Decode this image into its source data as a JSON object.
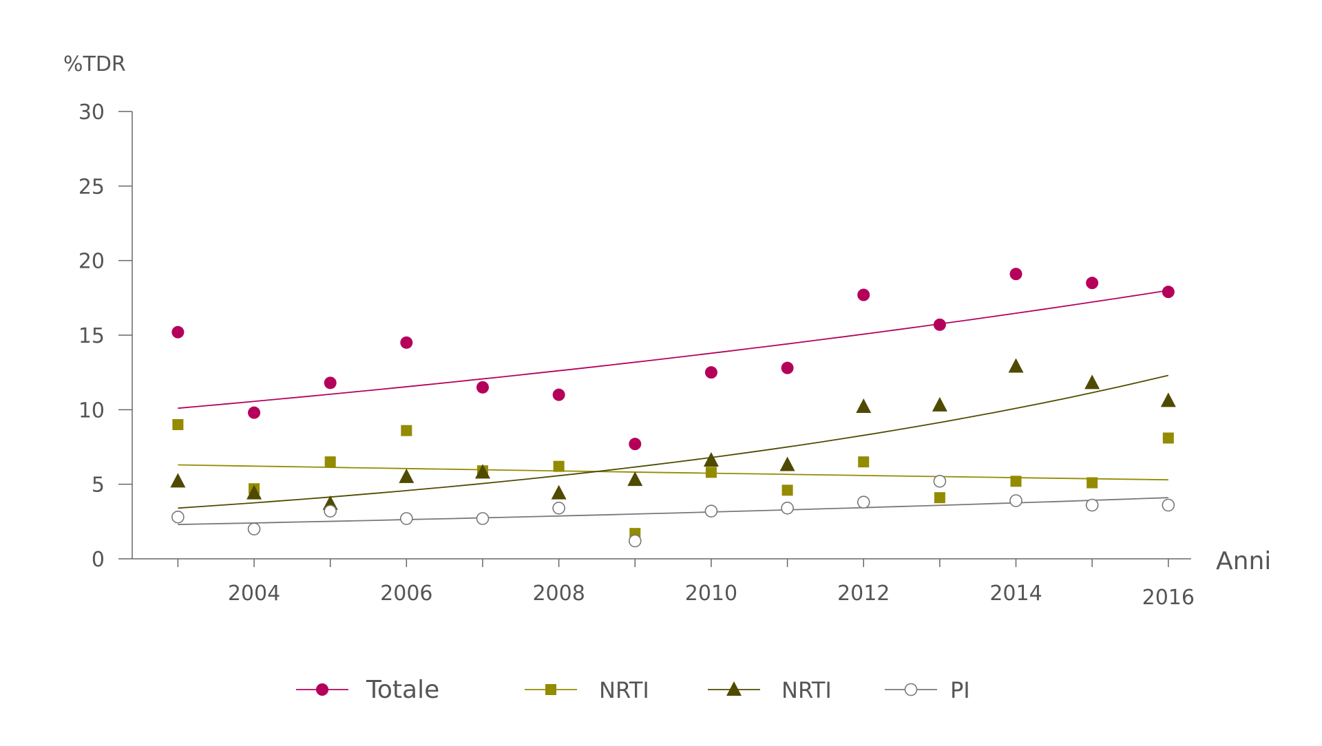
{
  "chart_data": {
    "type": "scatter",
    "ylabel": "%TDR",
    "xlabel": "Anni",
    "xlim": [
      2002.4,
      2016.3
    ],
    "ylim": [
      0,
      30
    ],
    "xticks": [
      2004,
      2006,
      2008,
      2010,
      2012,
      2014,
      2016
    ],
    "yticks": [
      0,
      5,
      10,
      15,
      20,
      25,
      30
    ],
    "grid": false,
    "legend_position": "bottom",
    "x": [
      2003,
      2004,
      2005,
      2006,
      2007,
      2008,
      2009,
      2010,
      2011,
      2012,
      2013,
      2014,
      2015,
      2016
    ],
    "series": [
      {
        "name": "Totale",
        "marker": "circle-filled",
        "color": "#B5005B",
        "values": [
          15.2,
          9.8,
          11.8,
          14.5,
          11.5,
          11.0,
          7.7,
          12.5,
          12.8,
          17.7,
          15.7,
          19.1,
          18.5,
          17.9
        ],
        "trend": [
          10.1,
          18.0
        ]
      },
      {
        "name": "NRTI",
        "marker": "square-filled",
        "color": "#938B00",
        "values": [
          9.0,
          4.7,
          6.5,
          8.6,
          5.9,
          6.2,
          1.7,
          5.8,
          4.6,
          6.5,
          4.1,
          5.2,
          5.1,
          8.1
        ],
        "trend": [
          6.3,
          5.3
        ]
      },
      {
        "name": "NRTI",
        "marker": "triangle-filled",
        "color": "#4F4A00",
        "values": [
          5.2,
          4.4,
          3.7,
          5.5,
          5.8,
          4.4,
          5.3,
          6.6,
          6.3,
          10.2,
          10.3,
          12.9,
          11.8,
          10.6
        ],
        "trend": [
          3.4,
          12.3
        ]
      },
      {
        "name": "PI",
        "marker": "circle-open",
        "color": "#777777",
        "values": [
          2.8,
          2.0,
          3.2,
          2.7,
          2.7,
          3.4,
          1.2,
          3.2,
          3.4,
          3.8,
          5.2,
          3.9,
          3.6,
          3.6
        ],
        "trend": [
          2.3,
          4.1
        ]
      }
    ]
  }
}
